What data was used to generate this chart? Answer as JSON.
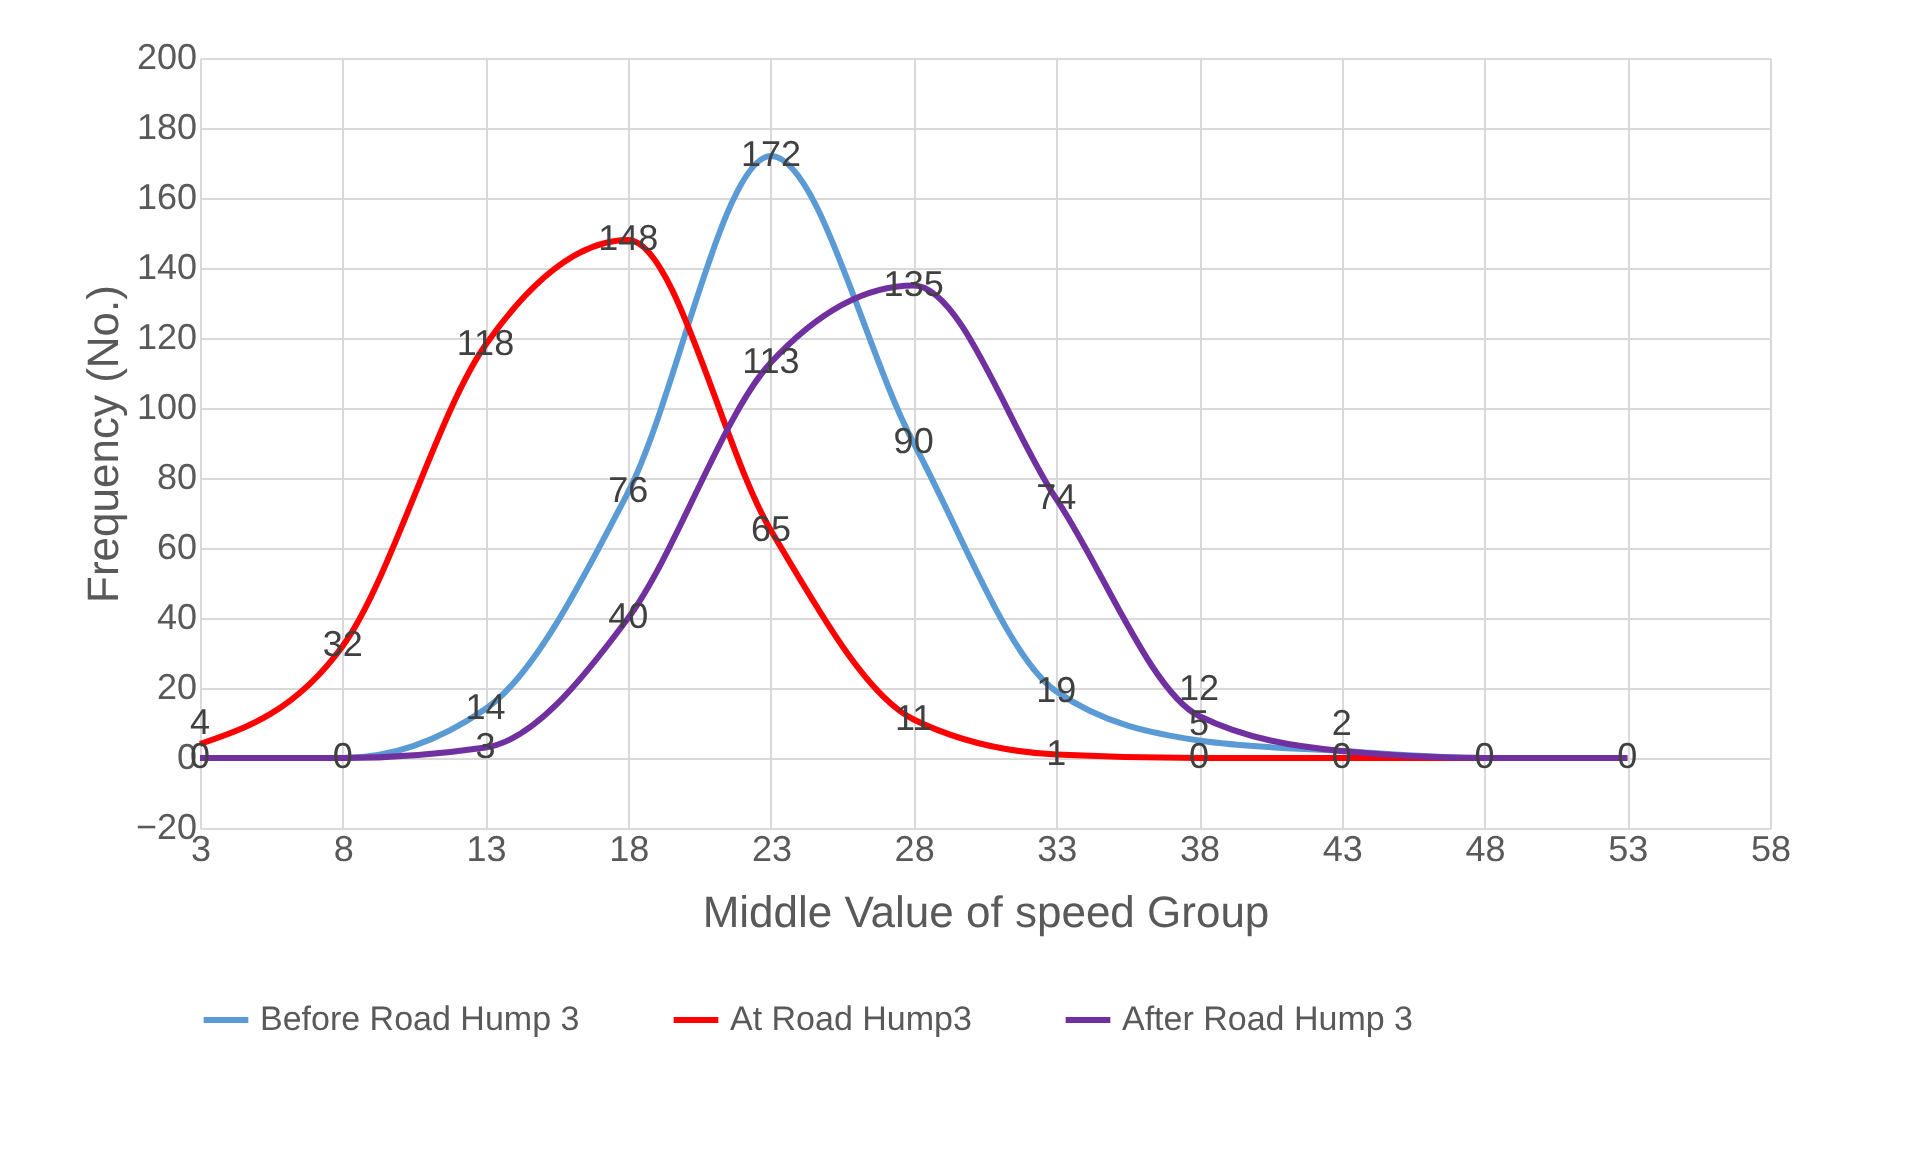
{
  "chart_data": {
    "type": "line",
    "xlabel": "Middle Value of speed Group",
    "ylabel": "Frequency (No.)",
    "x": [
      3,
      8,
      13,
      18,
      23,
      28,
      33,
      38,
      43,
      48,
      53
    ],
    "series": [
      {
        "name": "Before Road Hump 3",
        "color": "#5b9bd5",
        "values": [
          0,
          0,
          14,
          76,
          172,
          90,
          19,
          5,
          2,
          0,
          0
        ],
        "value_labels": [
          "0",
          "0",
          "14",
          "76",
          "172",
          "90",
          "19",
          "5",
          "2",
          "0",
          "0"
        ]
      },
      {
        "name": "At Road Hump3",
        "color": "#ff0000",
        "values": [
          4,
          32,
          118,
          148,
          65,
          11,
          1,
          0,
          0,
          0,
          0
        ],
        "value_labels": [
          "4",
          "32",
          "118",
          "148",
          "65",
          "11",
          "1",
          "0",
          "0",
          null,
          null
        ]
      },
      {
        "name": "After Road Hump 3",
        "color": "#7030a0",
        "values": [
          0,
          0,
          3,
          40,
          113,
          135,
          74,
          12,
          2,
          0,
          0
        ],
        "value_labels": [
          null,
          null,
          "3",
          "40",
          "113",
          "135",
          "74",
          "12",
          null,
          null,
          null
        ]
      }
    ],
    "xlim": [
      3,
      58
    ],
    "xticks": [
      3,
      8,
      13,
      18,
      23,
      28,
      33,
      38,
      43,
      48,
      53,
      58
    ],
    "ylim": [
      -20,
      200
    ],
    "yticks": [
      -20,
      0,
      20,
      40,
      60,
      80,
      100,
      120,
      140,
      160,
      180,
      200
    ],
    "grid": true,
    "legend": "bottom",
    "marker": "none",
    "line_style": "solid"
  }
}
